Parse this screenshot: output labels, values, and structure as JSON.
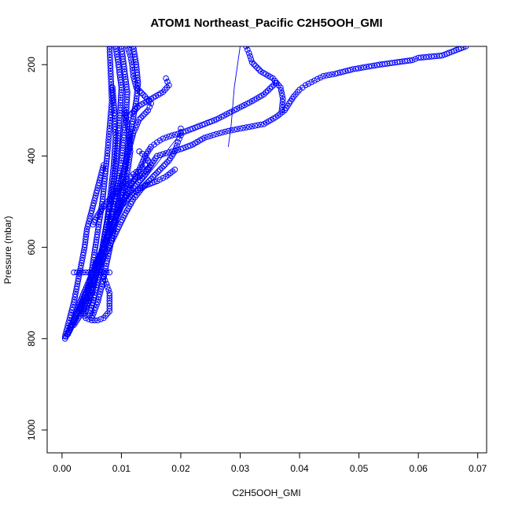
{
  "chart_data": {
    "type": "scatter",
    "title": "ATOM1 Northeast_Pacific C2H5OOH_GMI",
    "xlabel": "C2H5OOH_GMI",
    "ylabel": "Pressure (mbar)",
    "xlim": [
      -0.0025,
      0.0715
    ],
    "ylim": [
      1050,
      160
    ],
    "y_reversed": true,
    "x_ticks": [
      0.0,
      0.01,
      0.02,
      0.03,
      0.04,
      0.05,
      0.06,
      0.07
    ],
    "x_tick_labels": [
      "0.00",
      "0.01",
      "0.02",
      "0.03",
      "0.04",
      "0.05",
      "0.06",
      "0.07"
    ],
    "y_ticks": [
      200,
      400,
      600,
      800,
      1000
    ],
    "y_tick_labels": [
      "200",
      "400",
      "600",
      "800",
      "1000"
    ],
    "grid": false,
    "legend": "none",
    "marker": "open-circle",
    "series_color": "#0000ff",
    "series": [
      {
        "points": [
          [
            0.068,
            160
          ],
          [
            0.066,
            170
          ],
          [
            0.064,
            180
          ],
          [
            0.06,
            185
          ],
          [
            0.059,
            190
          ],
          [
            0.0535,
            200
          ],
          [
            0.049,
            210
          ],
          [
            0.046,
            220
          ],
          [
            0.044,
            225
          ],
          [
            0.0425,
            235
          ],
          [
            0.041,
            245
          ],
          [
            0.04,
            255
          ],
          [
            0.039,
            270
          ],
          [
            0.0375,
            300
          ],
          [
            0.036,
            315
          ],
          [
            0.034,
            330
          ],
          [
            0.032,
            335
          ],
          [
            0.03,
            340
          ],
          [
            0.028,
            345
          ],
          [
            0.026,
            352
          ],
          [
            0.024,
            360
          ],
          [
            0.022,
            375
          ],
          [
            0.02,
            385
          ],
          [
            0.018,
            392
          ],
          [
            0.016,
            400
          ],
          [
            0.014,
            440
          ],
          [
            0.012,
            470
          ],
          [
            0.01,
            500
          ],
          [
            0.0085,
            550
          ],
          [
            0.007,
            600
          ],
          [
            0.0055,
            650
          ],
          [
            0.004,
            700
          ],
          [
            0.002,
            760
          ],
          [
            0.0005,
            800
          ]
        ]
      },
      {
        "points": [
          [
            0.036,
            240
          ],
          [
            0.034,
            265
          ],
          [
            0.032,
            280
          ],
          [
            0.029,
            300
          ],
          [
            0.026,
            320
          ],
          [
            0.024,
            330
          ],
          [
            0.022,
            340
          ],
          [
            0.02,
            350
          ],
          [
            0.0185,
            355
          ],
          [
            0.017,
            362
          ],
          [
            0.016,
            370
          ],
          [
            0.015,
            380
          ],
          [
            0.014,
            400
          ],
          [
            0.013,
            430
          ],
          [
            0.011,
            480
          ],
          [
            0.009,
            540
          ],
          [
            0.007,
            600
          ],
          [
            0.005,
            660
          ],
          [
            0.003,
            720
          ],
          [
            0.001,
            790
          ]
        ]
      },
      {
        "points": [
          [
            0.031,
            160
          ],
          [
            0.0315,
            175
          ],
          [
            0.032,
            195
          ],
          [
            0.0335,
            215
          ],
          [
            0.0355,
            230
          ],
          [
            0.0368,
            250
          ],
          [
            0.0372,
            275
          ],
          [
            0.037,
            300
          ]
        ]
      },
      {
        "points": [
          [
            0.02,
            340
          ],
          [
            0.02,
            355
          ],
          [
            0.0195,
            370
          ],
          [
            0.019,
            390
          ],
          [
            0.018,
            410
          ],
          [
            0.0165,
            430
          ],
          [
            0.015,
            450
          ],
          [
            0.0135,
            470
          ],
          [
            0.012,
            495
          ],
          [
            0.0105,
            530
          ],
          [
            0.009,
            570
          ],
          [
            0.0075,
            610
          ],
          [
            0.006,
            650
          ],
          [
            0.0045,
            690
          ],
          [
            0.003,
            730
          ]
        ]
      },
      {
        "points": [
          [
            0.011,
            160
          ],
          [
            0.0115,
            180
          ],
          [
            0.0118,
            200
          ],
          [
            0.012,
            225
          ],
          [
            0.0125,
            250
          ],
          [
            0.014,
            270
          ],
          [
            0.015,
            285
          ],
          [
            0.0145,
            300
          ],
          [
            0.013,
            320
          ],
          [
            0.012,
            350
          ],
          [
            0.011,
            400
          ],
          [
            0.01,
            450
          ],
          [
            0.009,
            500
          ],
          [
            0.008,
            550
          ],
          [
            0.007,
            600
          ],
          [
            0.006,
            650
          ],
          [
            0.0045,
            700
          ],
          [
            0.0025,
            750
          ],
          [
            0.001,
            790
          ]
        ]
      },
      {
        "points": [
          [
            0.0175,
            230
          ],
          [
            0.018,
            245
          ],
          [
            0.017,
            260
          ],
          [
            0.015,
            275
          ],
          [
            0.013,
            290
          ],
          [
            0.0115,
            310
          ]
        ]
      },
      {
        "points": [
          [
            0.019,
            430
          ],
          [
            0.0175,
            445
          ],
          [
            0.016,
            455
          ],
          [
            0.014,
            465
          ],
          [
            0.012,
            480
          ],
          [
            0.01,
            510
          ],
          [
            0.0085,
            550
          ],
          [
            0.007,
            600
          ],
          [
            0.0055,
            640
          ]
        ]
      },
      {
        "points": [
          [
            0.013,
            390
          ],
          [
            0.014,
            400
          ],
          [
            0.015,
            420
          ],
          [
            0.0135,
            440
          ],
          [
            0.012,
            455
          ],
          [
            0.0105,
            470
          ]
        ]
      },
      {
        "points": [
          [
            0.009,
            160
          ],
          [
            0.0095,
            200
          ],
          [
            0.01,
            250
          ],
          [
            0.0098,
            300
          ],
          [
            0.0095,
            350
          ],
          [
            0.0092,
            400
          ],
          [
            0.0088,
            450
          ],
          [
            0.0082,
            500
          ],
          [
            0.0075,
            550
          ],
          [
            0.0068,
            600
          ],
          [
            0.006,
            650
          ],
          [
            0.005,
            700
          ],
          [
            0.004,
            730
          ],
          [
            0.003,
            750
          ],
          [
            0.002,
            770
          ]
        ]
      },
      {
        "points": [
          [
            0.008,
            160
          ],
          [
            0.0082,
            220
          ],
          [
            0.0084,
            280
          ],
          [
            0.008,
            340
          ],
          [
            0.0076,
            400
          ],
          [
            0.0072,
            450
          ],
          [
            0.0068,
            500
          ],
          [
            0.0062,
            550
          ],
          [
            0.0056,
            600
          ],
          [
            0.005,
            650
          ],
          [
            0.0044,
            700
          ],
          [
            0.0036,
            740
          ]
        ]
      },
      {
        "points": [
          [
            0.01,
            160
          ],
          [
            0.0105,
            210
          ],
          [
            0.011,
            260
          ],
          [
            0.0108,
            310
          ],
          [
            0.0104,
            360
          ],
          [
            0.01,
            410
          ],
          [
            0.0094,
            460
          ],
          [
            0.0086,
            510
          ],
          [
            0.0078,
            560
          ],
          [
            0.007,
            610
          ],
          [
            0.0062,
            660
          ],
          [
            0.0054,
            710
          ],
          [
            0.0046,
            750
          ]
        ]
      },
      {
        "points": [
          [
            0.012,
            160
          ],
          [
            0.0125,
            200
          ],
          [
            0.0128,
            240
          ],
          [
            0.0125,
            280
          ],
          [
            0.0118,
            330
          ],
          [
            0.0112,
            380
          ],
          [
            0.0106,
            430
          ],
          [
            0.01,
            480
          ],
          [
            0.0092,
            530
          ],
          [
            0.0084,
            580
          ],
          [
            0.0076,
            630
          ],
          [
            0.0068,
            680
          ],
          [
            0.006,
            720
          ],
          [
            0.005,
            755
          ]
        ]
      },
      {
        "points": [
          [
            0.007,
            420
          ],
          [
            0.006,
            470
          ],
          [
            0.005,
            520
          ],
          [
            0.0042,
            560
          ],
          [
            0.0038,
            600
          ],
          [
            0.0032,
            640
          ],
          [
            0.0026,
            680
          ],
          [
            0.002,
            720
          ],
          [
            0.0012,
            760
          ],
          [
            0.0005,
            795
          ]
        ]
      },
      {
        "points": [
          [
            0.008,
            655
          ],
          [
            0.007,
            655
          ],
          [
            0.006,
            655
          ],
          [
            0.005,
            655
          ],
          [
            0.004,
            655
          ],
          [
            0.003,
            655
          ],
          [
            0.002,
            655
          ]
        ]
      },
      {
        "points": [
          [
            0.003,
            735
          ],
          [
            0.004,
            755
          ],
          [
            0.005,
            760
          ],
          [
            0.006,
            760
          ],
          [
            0.007,
            755
          ],
          [
            0.008,
            740
          ],
          [
            0.008,
            700
          ],
          [
            0.0075,
            680
          ],
          [
            0.007,
            665
          ]
        ]
      },
      {
        "points": [
          [
            0.014,
            420
          ],
          [
            0.013,
            430
          ],
          [
            0.012,
            440
          ],
          [
            0.011,
            450
          ],
          [
            0.01,
            465
          ],
          [
            0.009,
            480
          ],
          [
            0.008,
            495
          ],
          [
            0.007,
            510
          ],
          [
            0.006,
            530
          ],
          [
            0.0052,
            550
          ]
        ]
      },
      {
        "points": [
          [
            0.0105,
            300
          ],
          [
            0.011,
            330
          ],
          [
            0.0113,
            360
          ],
          [
            0.0115,
            390
          ],
          [
            0.0112,
            420
          ],
          [
            0.0108,
            450
          ],
          [
            0.0103,
            480
          ],
          [
            0.0097,
            510
          ],
          [
            0.009,
            540
          ]
        ]
      },
      {
        "points": [
          [
            0.0085,
            250
          ],
          [
            0.0088,
            300
          ],
          [
            0.009,
            360
          ],
          [
            0.0087,
            420
          ],
          [
            0.0082,
            480
          ],
          [
            0.0076,
            540
          ],
          [
            0.0068,
            600
          ],
          [
            0.0058,
            660
          ],
          [
            0.0048,
            710
          ],
          [
            0.0038,
            745
          ]
        ]
      }
    ],
    "lines": [
      {
        "points": [
          [
            0.03,
            160
          ],
          [
            0.029,
            250
          ],
          [
            0.0285,
            330
          ],
          [
            0.028,
            380
          ]
        ]
      },
      {
        "points": [
          [
            0.02,
            350
          ],
          [
            0.017,
            400
          ],
          [
            0.014,
            450
          ],
          [
            0.012,
            480
          ],
          [
            0.01,
            510
          ]
        ]
      },
      {
        "points": [
          [
            0.015,
            380
          ],
          [
            0.013,
            430
          ],
          [
            0.011,
            470
          ]
        ]
      }
    ]
  }
}
